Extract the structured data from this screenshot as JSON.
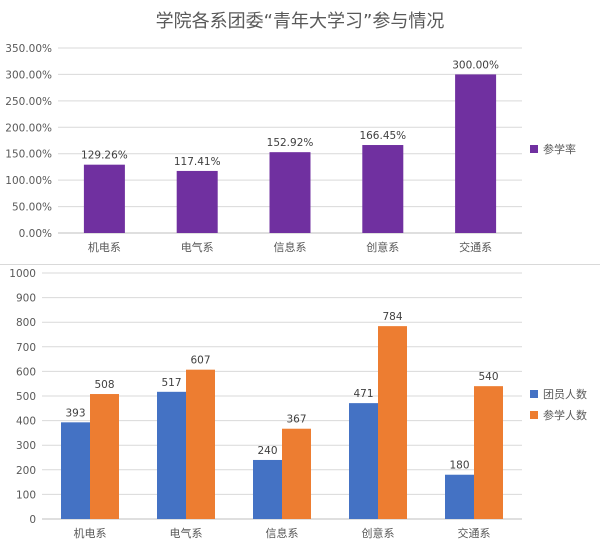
{
  "chart_data": [
    {
      "type": "bar",
      "title": "学院各系团委“青年大学习”参与情况",
      "categories": [
        "机电系",
        "电气系",
        "信息系",
        "创意系",
        "交通系"
      ],
      "series": [
        {
          "name": "参学率",
          "values": [
            129.26,
            117.41,
            152.92,
            166.45,
            300.0
          ],
          "color": "#7030a0"
        }
      ],
      "data_labels": [
        "129.26%",
        "117.41%",
        "152.92%",
        "166.45%",
        "300.00%"
      ],
      "ylim": [
        0,
        350
      ],
      "yticks": [
        0,
        50,
        100,
        150,
        200,
        250,
        300,
        350
      ],
      "ytick_labels": [
        "0.00%",
        "50.00%",
        "100.00%",
        "150.00%",
        "200.00%",
        "250.00%",
        "300.00%",
        "350.00%"
      ],
      "legend_position": "right",
      "grid": true
    },
    {
      "type": "bar",
      "title": "",
      "categories": [
        "机电系",
        "电气系",
        "信息系",
        "创意系",
        "交通系"
      ],
      "series": [
        {
          "name": "团员人数",
          "values": [
            393,
            517,
            240,
            471,
            180
          ],
          "color": "#4472c4"
        },
        {
          "name": "参学人数",
          "values": [
            508,
            607,
            367,
            784,
            540
          ],
          "color": "#ed7d31"
        }
      ],
      "ylim": [
        0,
        1000
      ],
      "yticks": [
        0,
        100,
        200,
        300,
        400,
        500,
        600,
        700,
        800,
        900,
        1000
      ],
      "legend_position": "right",
      "grid": true
    }
  ]
}
